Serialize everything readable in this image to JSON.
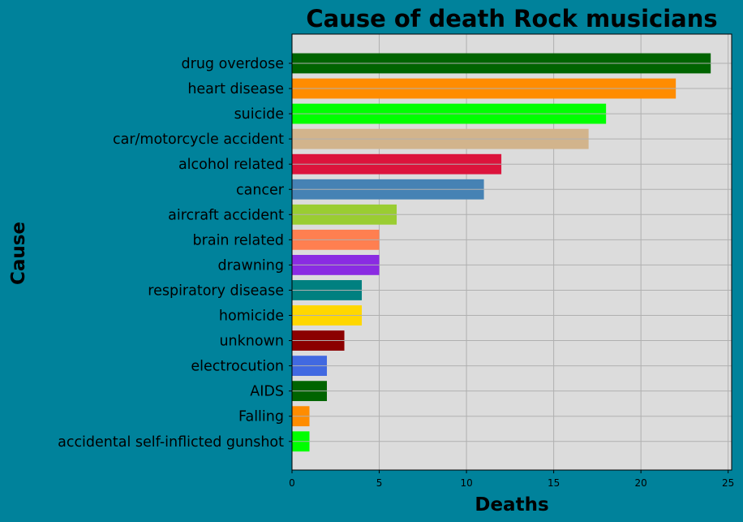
{
  "chart_data": {
    "type": "bar",
    "orientation": "horizontal",
    "title": "Cause of death Rock musicians",
    "xlabel": "Deaths",
    "ylabel": "Cause",
    "xlim": [
      0,
      25.2
    ],
    "xticks": [
      0,
      5,
      10,
      15,
      20,
      25
    ],
    "grid": true,
    "categories": [
      "drug overdose",
      "heart disease",
      "suicide",
      "car/motorcycle accident",
      "alcohol related",
      "cancer",
      "aircraft accident",
      "brain related",
      "drawning",
      "respiratory disease",
      "homicide",
      "unknown",
      "electrocution",
      "AIDS",
      "Falling",
      "accidental self-inflicted gunshot"
    ],
    "values": [
      24,
      22,
      18,
      17,
      12,
      11,
      6,
      5,
      5,
      4,
      4,
      3,
      2,
      2,
      1,
      1
    ],
    "colors": [
      "#006400",
      "#ff8c00",
      "#00ff00",
      "#d2b48c",
      "#dc143c",
      "#4682b4",
      "#9acd32",
      "#ff7f50",
      "#8a2be2",
      "#008080",
      "#ffd700",
      "#8b0000",
      "#4169e1",
      "#006400",
      "#ff8c00",
      "#00ff00"
    ],
    "figure_background": "#00829b",
    "plot_background": "#dcdcdc",
    "grid_color": "#b0b0b0"
  }
}
